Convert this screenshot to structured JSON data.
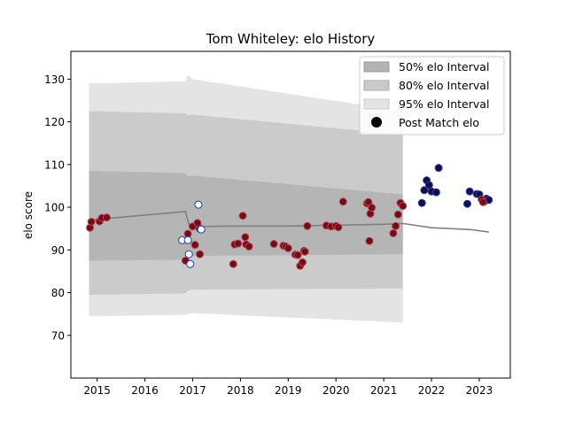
{
  "chart_data": {
    "type": "scatter",
    "title": "Tom Whiteley: elo History",
    "xlabel": "",
    "ylabel": "elo score",
    "xlim": [
      2014.45,
      2023.65
    ],
    "ylim": [
      60.0,
      136.5
    ],
    "x_ticks": [
      2015,
      2016,
      2017,
      2018,
      2019,
      2020,
      2021,
      2022,
      2023
    ],
    "y_ticks": [
      70,
      80,
      90,
      100,
      110,
      120,
      130
    ],
    "grid": false,
    "legend": {
      "placement": "top-right",
      "entries": [
        "50% elo Interval",
        "80% elo Interval",
        "95% elo Interval",
        "Post Match elo"
      ]
    },
    "colors": {
      "band50": "#b3b3b3",
      "band80": "#c9c9c9",
      "band95": "#e3e3e3",
      "mean_line": "#808080",
      "win_marker": "#0f0f4a",
      "win_edge": "#3a3aa0",
      "loss_marker": "#6b0f1a",
      "loss_edge": "#c04050",
      "neutral_marker": "#ffffff",
      "neutral_edge": "#1f3fa0"
    },
    "bands": {
      "x": [
        2014.83,
        2016.85,
        2016.9,
        2017.0,
        2021.4
      ],
      "p50": [
        [
          87.5,
          108.5
        ],
        [
          87.7,
          108.0
        ],
        [
          88.4,
          107.2
        ],
        [
          88.6,
          107.4
        ],
        [
          89.0,
          103.0
        ]
      ],
      "p80": [
        [
          79.5,
          122.5
        ],
        [
          79.8,
          122.0
        ],
        [
          80.5,
          121.5
        ],
        [
          80.7,
          121.7
        ],
        [
          81.0,
          117.0
        ]
      ],
      "p95": [
        [
          74.5,
          129.0
        ],
        [
          74.8,
          129.5
        ],
        [
          75.0,
          131.0
        ],
        [
          75.2,
          130.0
        ],
        [
          73.0,
          122.5
        ]
      ]
    },
    "series": [
      {
        "role": "mean",
        "x": [
          2014.83,
          2016.85,
          2016.92,
          2017.0,
          2017.2,
          2018.0,
          2019.0,
          2020.0,
          2021.0,
          2021.4,
          2022.0,
          2022.8,
          2023.2
        ],
        "y": [
          97.0,
          99.0,
          96.0,
          95.5,
          95.5,
          95.6,
          95.6,
          95.8,
          96.0,
          96.2,
          95.2,
          94.8,
          94.2
        ]
      },
      {
        "role": "win",
        "x": [
          2017.15,
          2021.8,
          2021.85,
          2021.9,
          2021.95,
          2022.0,
          2022.1,
          2022.15,
          2022.75,
          2022.8,
          2022.95,
          2023.0,
          2023.1,
          2023.15,
          2023.2
        ],
        "y": [
          95.0,
          101.0,
          104.0,
          106.3,
          105.2,
          103.7,
          103.5,
          109.2,
          100.8,
          103.7,
          103.1,
          103.0,
          101.3,
          102.0,
          101.7
        ]
      },
      {
        "role": "loss",
        "x": [
          2014.85,
          2014.88,
          2015.05,
          2015.1,
          2015.2,
          2016.85,
          2016.9,
          2017.0,
          2017.05,
          2017.1,
          2017.15,
          2017.85,
          2017.88,
          2017.95,
          2018.05,
          2018.1,
          2018.12,
          2018.18,
          2018.7,
          2018.9,
          2018.95,
          2019.0,
          2019.15,
          2019.2,
          2019.25,
          2019.3,
          2019.33,
          2019.35,
          2019.4,
          2019.8,
          2019.9,
          2020.0,
          2020.05,
          2020.15,
          2020.65,
          2020.68,
          2020.7,
          2020.72,
          2020.75,
          2021.2,
          2021.25,
          2021.3,
          2021.35,
          2021.4,
          2023.05,
          2023.08
        ],
        "y": [
          95.2,
          96.6,
          96.7,
          97.5,
          97.6,
          87.5,
          93.8,
          95.5,
          91.2,
          96.3,
          89.0,
          86.7,
          91.3,
          91.5,
          98.0,
          93.0,
          91.3,
          90.8,
          91.4,
          91.0,
          90.8,
          90.4,
          88.9,
          88.8,
          86.3,
          87.1,
          89.8,
          89.6,
          95.6,
          95.7,
          95.5,
          95.6,
          95.3,
          101.3,
          100.9,
          101.2,
          92.1,
          98.5,
          99.9,
          93.9,
          95.6,
          98.3,
          101.0,
          100.3,
          101.8,
          101.2
        ]
      },
      {
        "role": "neutral",
        "x": [
          2016.78,
          2016.9,
          2016.92,
          2016.95,
          2017.12,
          2017.18
        ],
        "y": [
          92.3,
          92.3,
          89.0,
          86.7,
          100.6,
          94.8
        ]
      }
    ]
  }
}
